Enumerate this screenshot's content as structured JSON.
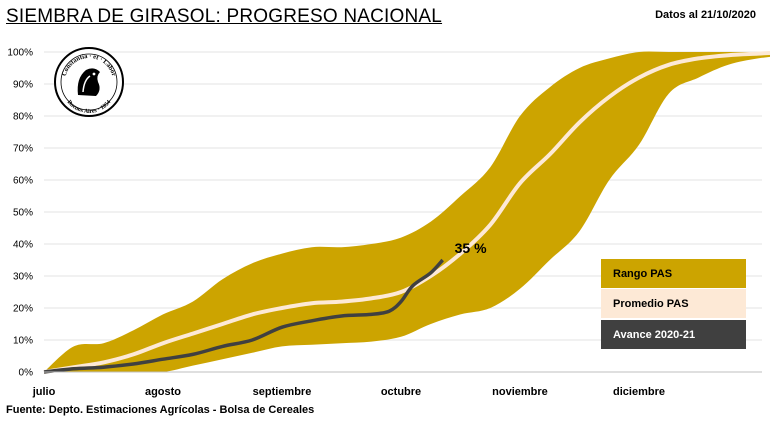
{
  "title": "SIEMBRA DE GIRASOL: PROGRESO NACIONAL",
  "date_label": "Datos al 21/10/2020",
  "source": "Fuente: Depto. Estimaciones Agrícolas - Bolsa de Cereales",
  "logo_text": "Constantia et Labor · Buenos Aires · 1854",
  "colors": {
    "range": "#ccA400",
    "average": "#fde9d6",
    "current": "#404040",
    "grid": "#e3e3e3"
  },
  "chart_data": {
    "type": "area",
    "x_unit": "month index (0 = inicio de julio)",
    "ylim": [
      0,
      100
    ],
    "y_ticks": [
      "0%",
      "10%",
      "20%",
      "30%",
      "40%",
      "50%",
      "60%",
      "70%",
      "80%",
      "90%",
      "100%"
    ],
    "x_tick_labels": [
      "julio",
      "agosto",
      "septiembre",
      "octubre",
      "noviembre",
      "diciembre"
    ],
    "grid": "horizontal",
    "legend_position": "right",
    "series": [
      {
        "name": "Rango PAS",
        "kind": "band",
        "points": [
          [
            0.0,
            0,
            0
          ],
          [
            0.25,
            8,
            0
          ],
          [
            0.5,
            9,
            0
          ],
          [
            0.75,
            13,
            0
          ],
          [
            1.0,
            18,
            0
          ],
          [
            1.25,
            22,
            2
          ],
          [
            1.5,
            29,
            4
          ],
          [
            1.75,
            34,
            6
          ],
          [
            2.0,
            37,
            8
          ],
          [
            2.25,
            39,
            8.5
          ],
          [
            2.5,
            39,
            9
          ],
          [
            2.75,
            40,
            9.5
          ],
          [
            3.0,
            42,
            11
          ],
          [
            3.25,
            47,
            15
          ],
          [
            3.5,
            55,
            18
          ],
          [
            3.75,
            64,
            20
          ],
          [
            4.0,
            80,
            26
          ],
          [
            4.25,
            89,
            35
          ],
          [
            4.5,
            95,
            44
          ],
          [
            4.75,
            98,
            60
          ],
          [
            5.0,
            100,
            71
          ],
          [
            5.25,
            100,
            87
          ],
          [
            5.5,
            100,
            92
          ],
          [
            5.75,
            100,
            96
          ],
          [
            6.0,
            100,
            98
          ],
          [
            6.25,
            100,
            99
          ]
        ]
      },
      {
        "name": "Promedio PAS",
        "kind": "line",
        "points": [
          [
            0.0,
            0
          ],
          [
            0.25,
            1.5
          ],
          [
            0.5,
            3
          ],
          [
            0.75,
            5.5
          ],
          [
            1.0,
            9
          ],
          [
            1.25,
            12
          ],
          [
            1.5,
            15
          ],
          [
            1.75,
            18
          ],
          [
            2.0,
            20
          ],
          [
            2.25,
            21.5
          ],
          [
            2.5,
            22
          ],
          [
            2.75,
            23
          ],
          [
            3.0,
            25
          ],
          [
            3.25,
            30
          ],
          [
            3.5,
            37
          ],
          [
            3.75,
            46
          ],
          [
            4.0,
            59
          ],
          [
            4.25,
            68
          ],
          [
            4.5,
            78
          ],
          [
            4.75,
            86
          ],
          [
            5.0,
            92
          ],
          [
            5.25,
            96
          ],
          [
            5.5,
            98
          ],
          [
            5.75,
            99
          ],
          [
            6.0,
            99.5
          ],
          [
            6.25,
            100
          ]
        ]
      },
      {
        "name": "Avance 2020-21",
        "kind": "line",
        "points": [
          [
            0.0,
            0
          ],
          [
            0.25,
            1
          ],
          [
            0.5,
            1.5
          ],
          [
            0.75,
            2.5
          ],
          [
            1.0,
            4
          ],
          [
            1.25,
            5.5
          ],
          [
            1.5,
            8
          ],
          [
            1.75,
            10
          ],
          [
            2.0,
            14
          ],
          [
            2.25,
            16
          ],
          [
            2.5,
            17.5
          ],
          [
            2.75,
            18
          ],
          [
            2.9,
            19
          ],
          [
            3.0,
            22
          ],
          [
            3.1,
            27
          ],
          [
            3.25,
            31
          ],
          [
            3.35,
            35
          ]
        ]
      }
    ],
    "annotations": [
      {
        "text": "35 %",
        "x": 3.35,
        "y": 35
      }
    ]
  }
}
